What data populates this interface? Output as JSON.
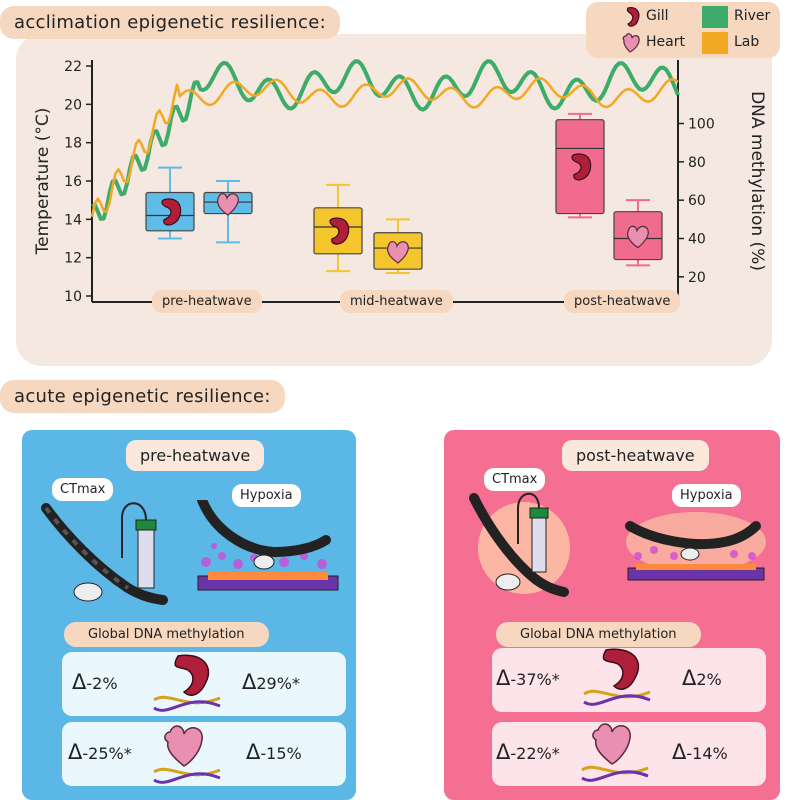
{
  "titles": {
    "acclimation": "acclimation epigenetic resilience:",
    "acute": "acute epigenetic resilience:"
  },
  "legend": {
    "gill": "Gill",
    "heart": "Heart",
    "river": "River",
    "lab": "Lab",
    "colors": {
      "river": "#3dac6b",
      "lab": "#f2a823"
    }
  },
  "chart_data": {
    "type": "line+box",
    "ylabel_left": "Temperature (°C)",
    "ylabel_right": "DNA methylation (%)",
    "left_ticks": [
      10,
      12,
      14,
      16,
      18,
      20,
      22
    ],
    "right_ticks": [
      20,
      40,
      60,
      80,
      100
    ],
    "ylim_left": [
      10,
      22
    ],
    "ylim_right": [
      10,
      130
    ],
    "phases": [
      "pre-heatwave",
      "mid-heatwave",
      "post-heatwave"
    ],
    "series": [
      {
        "name": "River",
        "color": "#3dac6b"
      },
      {
        "name": "Lab",
        "color": "#f2a823"
      }
    ],
    "boxes": [
      {
        "phase": "pre-heatwave",
        "tissue": "Gill",
        "min": 13.0,
        "q1": 13.4,
        "median": 14.2,
        "q3": 15.4,
        "max": 16.7,
        "color": "#5fbce6"
      },
      {
        "phase": "pre-heatwave",
        "tissue": "Heart",
        "min": 12.8,
        "q1": 14.3,
        "median": 14.9,
        "q3": 15.4,
        "max": 16.0,
        "color": "#5fbce6"
      },
      {
        "phase": "mid-heatwave",
        "tissue": "Gill",
        "min": 11.3,
        "q1": 12.2,
        "median": 13.6,
        "q3": 14.6,
        "max": 15.8,
        "color": "#f5c52e"
      },
      {
        "phase": "mid-heatwave",
        "tissue": "Heart",
        "min": 11.2,
        "q1": 11.4,
        "median": 12.5,
        "q3": 13.3,
        "max": 14.0,
        "color": "#f5c52e"
      },
      {
        "phase": "post-heatwave",
        "tissue": "Gill",
        "min": 14.1,
        "q1": 14.3,
        "median": 17.7,
        "q3": 19.2,
        "max": 19.5,
        "color": "#f06b8d"
      },
      {
        "phase": "post-heatwave",
        "tissue": "Heart",
        "min": 11.6,
        "q1": 11.9,
        "median": 13.0,
        "q3": 14.4,
        "max": 15.0,
        "color": "#f06b8d"
      }
    ]
  },
  "acute": {
    "pre": {
      "title": "pre-heatwave",
      "ctmax": "CTmax",
      "hypoxia": "Hypoxia",
      "gdm": "Global DNA methylation",
      "gill_ctmax": "-2%",
      "gill_hypoxia": "29%*",
      "heart_ctmax": "-25%*",
      "heart_hypoxia": "-15%",
      "bg": "#5ab7e6"
    },
    "post": {
      "title": "post-heatwave",
      "ctmax": "CTmax",
      "hypoxia": "Hypoxia",
      "gdm": "Global DNA methylation",
      "gill_ctmax": "-37%*",
      "gill_hypoxia": "2%",
      "heart_ctmax": "-22%*",
      "heart_hypoxia": "-14%",
      "bg": "#f56f92"
    }
  },
  "delta_symbol": "Δ"
}
